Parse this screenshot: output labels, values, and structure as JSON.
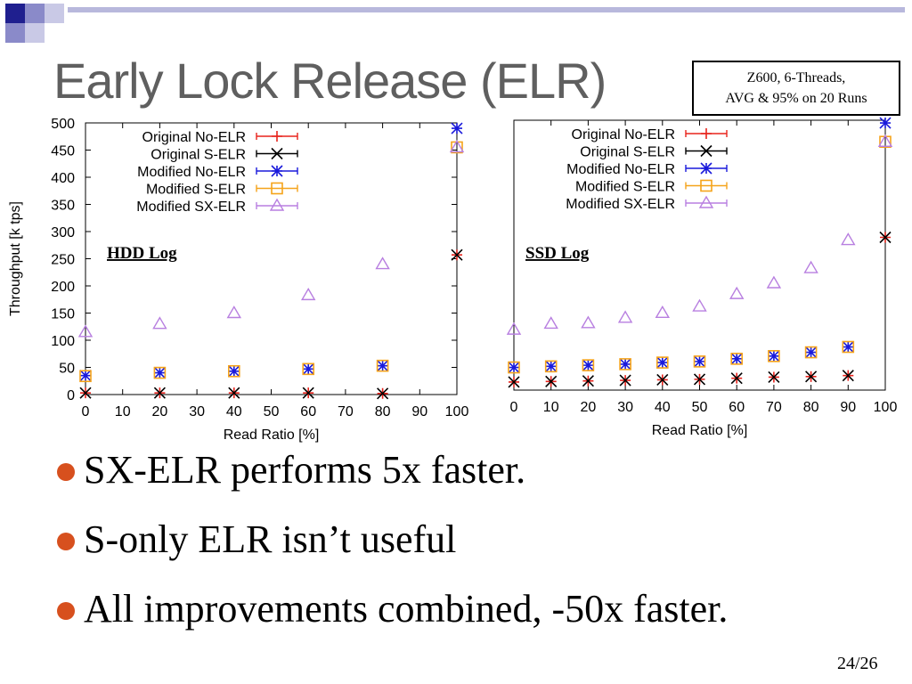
{
  "slide": {
    "title": "Early Lock Release (ELR)",
    "note_lines": [
      "Z600, 6-Threads,",
      "AVG & 95% on 20 Runs"
    ],
    "bullets": [
      "SX-ELR performs 5x faster.",
      "S-only ELR isn’t useful",
      "All improvements combined, -50x faster."
    ],
    "page_number": "24/26",
    "colors": {
      "title": "#5f5f5f",
      "bullet": "#d7501e",
      "decor_blue": "#1f1f8f"
    }
  },
  "chart_data": [
    {
      "type": "scatter",
      "label": "HDD Log",
      "xlabel": "Read Ratio [%]",
      "ylabel": "Throughput [k tps]",
      "xlim": [
        0,
        100
      ],
      "ylim": [
        0,
        500
      ],
      "xticks": [
        0,
        10,
        20,
        30,
        40,
        50,
        60,
        70,
        80,
        90,
        100
      ],
      "yticks": [
        0,
        50,
        100,
        150,
        200,
        250,
        300,
        350,
        400,
        450,
        500
      ],
      "legend_position": "top-left",
      "grid": false,
      "x": [
        0,
        20,
        40,
        60,
        80,
        100
      ],
      "series": [
        {
          "name": "Original No-ELR",
          "marker": "plus",
          "color": "#e8231c",
          "values": [
            3,
            3,
            3,
            3,
            2,
            257
          ]
        },
        {
          "name": "Original S-ELR",
          "marker": "cross",
          "color": "#000000",
          "values": [
            3,
            3,
            3,
            3,
            2,
            257
          ]
        },
        {
          "name": "Modified No-ELR",
          "marker": "asterisk",
          "color": "#1a1adb",
          "values": [
            35,
            40,
            43,
            47,
            53,
            490
          ]
        },
        {
          "name": "Modified S-ELR",
          "marker": "square",
          "color": "#f5a31a",
          "values": [
            34,
            40,
            43,
            47,
            53,
            455
          ]
        },
        {
          "name": "Modified SX-ELR",
          "marker": "triangle",
          "color": "#b87fe0",
          "values": [
            115,
            130,
            150,
            183,
            240,
            455
          ]
        }
      ]
    },
    {
      "type": "scatter",
      "label": "SSD Log",
      "xlabel": "Read Ratio [%]",
      "ylabel": "",
      "xlim": [
        0,
        100
      ],
      "ylim": [
        0,
        500
      ],
      "xticks": [
        0,
        10,
        20,
        30,
        40,
        50,
        60,
        70,
        80,
        90,
        100
      ],
      "legend_position": "top-left",
      "grid": false,
      "x": [
        0,
        10,
        20,
        30,
        40,
        50,
        60,
        70,
        80,
        90,
        100
      ],
      "series": [
        {
          "name": "Original No-ELR",
          "marker": "plus",
          "color": "#e8231c",
          "values": [
            15,
            16,
            17,
            18,
            19,
            20,
            22,
            24,
            25,
            27,
            283
          ]
        },
        {
          "name": "Original S-ELR",
          "marker": "cross",
          "color": "#000000",
          "values": [
            15,
            16,
            17,
            18,
            19,
            20,
            22,
            24,
            25,
            27,
            283
          ]
        },
        {
          "name": "Modified No-ELR",
          "marker": "asterisk",
          "color": "#1a1adb",
          "values": [
            42,
            44,
            46,
            48,
            51,
            53,
            58,
            63,
            70,
            80,
            495
          ]
        },
        {
          "name": "Modified S-ELR",
          "marker": "square",
          "color": "#f5a31a",
          "values": [
            42,
            44,
            46,
            48,
            51,
            53,
            58,
            63,
            70,
            80,
            460
          ]
        },
        {
          "name": "Modified SX-ELR",
          "marker": "triangle",
          "color": "#b87fe0",
          "values": [
            112,
            123,
            124,
            134,
            143,
            155,
            178,
            198,
            226,
            278,
            460
          ]
        }
      ]
    }
  ]
}
